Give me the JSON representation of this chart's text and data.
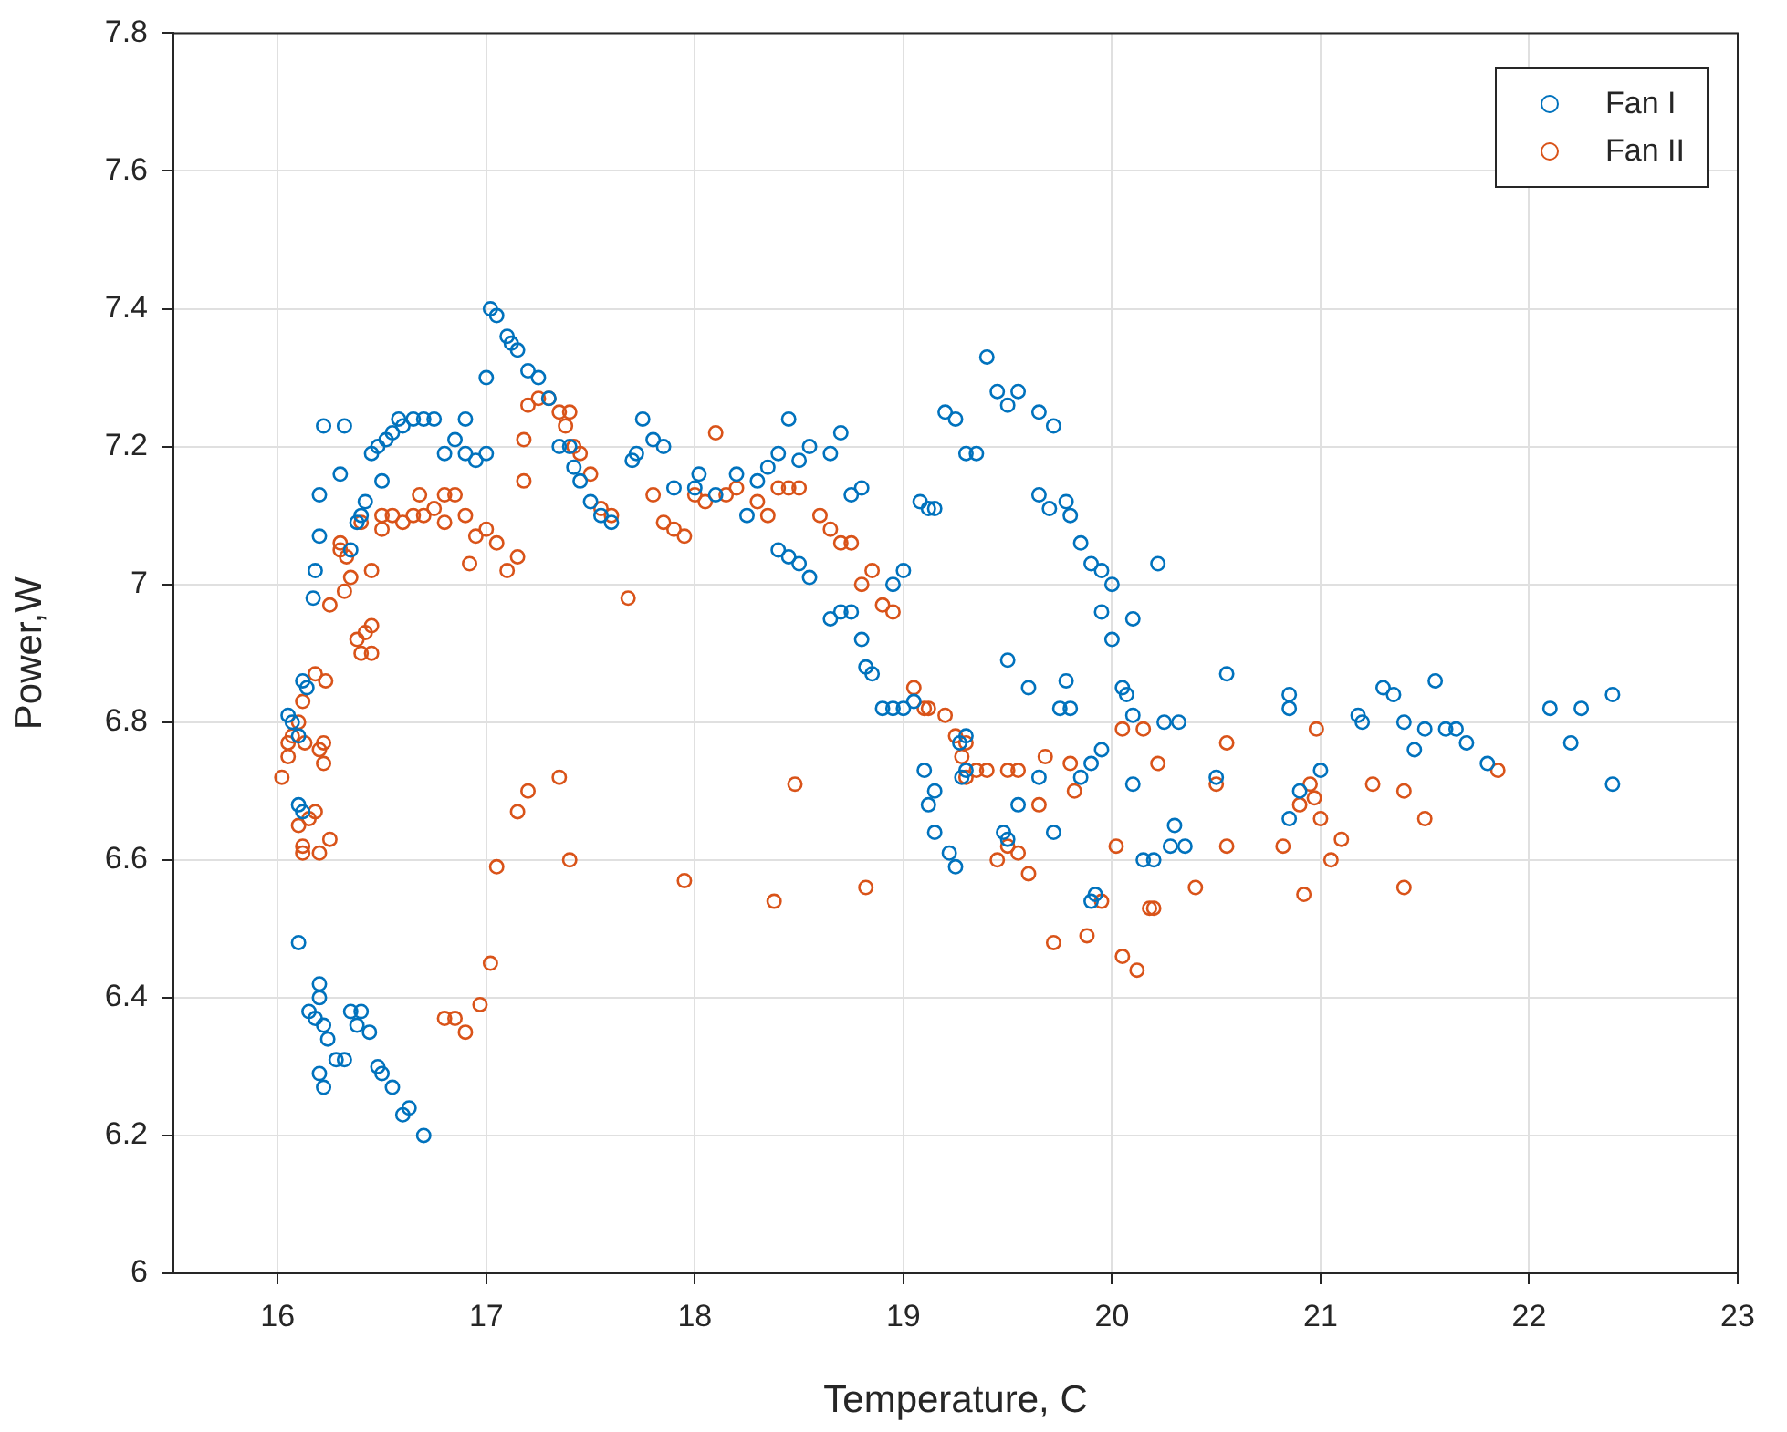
{
  "chart_data": {
    "type": "scatter",
    "xlabel": "Temperature, C",
    "ylabel": "Power,W",
    "xlim": [
      15.5,
      23
    ],
    "ylim": [
      6,
      7.8
    ],
    "xticks": [
      16,
      17,
      18,
      19,
      20,
      21,
      22,
      23
    ],
    "yticks": [
      6,
      6.2,
      6.4,
      6.6,
      6.8,
      7,
      7.2,
      7.4,
      7.6,
      7.8
    ],
    "grid": true,
    "legend": "top right",
    "marker": "circle",
    "series": [
      {
        "name": "Fan I",
        "color": "#0072bd",
        "x": [
          16.05,
          16.07,
          16.1,
          16.12,
          16.14,
          16.1,
          16.12,
          16.1,
          16.15,
          16.2,
          16.2,
          16.18,
          16.22,
          16.2,
          16.22,
          16.24,
          16.28,
          16.32,
          16.35,
          16.38,
          16.4,
          16.44,
          16.48,
          16.5,
          16.55,
          16.6,
          16.63,
          16.7,
          16.17,
          16.2,
          16.18,
          16.2,
          16.22,
          16.32,
          16.3,
          16.35,
          16.38,
          16.4,
          16.42,
          16.45,
          16.48,
          16.5,
          16.52,
          16.55,
          16.58,
          16.6,
          16.65,
          16.7,
          16.75,
          16.8,
          16.85,
          16.9,
          16.9,
          16.95,
          17.0,
          17.0,
          17.02,
          17.05,
          17.1,
          17.12,
          17.15,
          17.2,
          17.25,
          17.3,
          17.35,
          17.4,
          17.42,
          17.45,
          17.5,
          17.55,
          17.6,
          17.7,
          17.72,
          17.75,
          17.8,
          17.85,
          17.9,
          18.0,
          18.02,
          18.1,
          18.2,
          18.25,
          18.3,
          18.35,
          18.4,
          18.45,
          18.5,
          18.55,
          18.4,
          18.45,
          18.5,
          18.55,
          18.65,
          18.7,
          18.75,
          18.8,
          18.65,
          18.7,
          18.75,
          18.8,
          18.82,
          18.85,
          18.9,
          18.95,
          19.0,
          19.05,
          18.95,
          19.0,
          19.08,
          19.12,
          19.15,
          19.2,
          19.25,
          19.3,
          19.35,
          19.4,
          19.45,
          19.5,
          19.55,
          19.65,
          19.72,
          19.65,
          19.7,
          19.78,
          19.8,
          19.85,
          19.9,
          19.95,
          20.0,
          20.1,
          20.22,
          19.95,
          20.0,
          20.05,
          20.07,
          20.1,
          20.1,
          20.15,
          20.2,
          20.25,
          20.32,
          20.3,
          20.28,
          20.35,
          20.55,
          20.5,
          19.1,
          19.15,
          19.12,
          19.15,
          19.22,
          19.25,
          19.28,
          19.3,
          19.27,
          19.3,
          19.5,
          19.48,
          19.5,
          19.55,
          19.6,
          19.78,
          19.75,
          19.8,
          19.85,
          19.9,
          19.95,
          19.9,
          19.92,
          19.65,
          19.72,
          20.85,
          20.85,
          20.85,
          20.9,
          21.0,
          21.18,
          21.2,
          21.3,
          21.35,
          21.4,
          21.45,
          21.5,
          21.55,
          21.6,
          21.65,
          21.7,
          21.8,
          22.1,
          22.25,
          22.4,
          22.2,
          22.4
        ],
        "values": [
          6.81,
          6.8,
          6.78,
          6.86,
          6.85,
          6.68,
          6.67,
          6.48,
          6.38,
          6.42,
          6.4,
          6.37,
          6.36,
          6.29,
          6.27,
          6.34,
          6.31,
          6.31,
          6.38,
          6.36,
          6.38,
          6.35,
          6.3,
          6.29,
          6.27,
          6.23,
          6.24,
          6.2,
          6.98,
          7.07,
          7.02,
          7.13,
          7.23,
          7.23,
          7.16,
          7.05,
          7.09,
          7.1,
          7.12,
          7.19,
          7.2,
          7.15,
          7.21,
          7.22,
          7.24,
          7.23,
          7.24,
          7.24,
          7.24,
          7.19,
          7.21,
          7.24,
          7.19,
          7.18,
          7.19,
          7.3,
          7.4,
          7.39,
          7.36,
          7.35,
          7.34,
          7.31,
          7.3,
          7.27,
          7.2,
          7.2,
          7.17,
          7.15,
          7.12,
          7.1,
          7.09,
          7.18,
          7.19,
          7.24,
          7.21,
          7.2,
          7.14,
          7.14,
          7.16,
          7.13,
          7.16,
          7.1,
          7.15,
          7.17,
          7.19,
          7.24,
          7.18,
          7.2,
          7.05,
          7.04,
          7.03,
          7.01,
          7.19,
          7.22,
          7.13,
          7.14,
          6.95,
          6.96,
          6.96,
          6.92,
          6.88,
          6.87,
          6.82,
          6.82,
          6.82,
          6.83,
          7.0,
          7.02,
          7.12,
          7.11,
          7.11,
          7.25,
          7.24,
          7.19,
          7.19,
          7.33,
          7.28,
          7.26,
          7.28,
          7.25,
          7.23,
          7.13,
          7.11,
          7.12,
          7.1,
          7.06,
          7.03,
          7.02,
          7.0,
          6.95,
          7.03,
          6.96,
          6.92,
          6.85,
          6.84,
          6.81,
          6.71,
          6.6,
          6.6,
          6.8,
          6.8,
          6.65,
          6.62,
          6.62,
          6.87,
          6.72,
          6.73,
          6.7,
          6.68,
          6.64,
          6.61,
          6.59,
          6.72,
          6.73,
          6.77,
          6.78,
          6.89,
          6.64,
          6.63,
          6.68,
          6.85,
          6.86,
          6.82,
          6.82,
          6.72,
          6.74,
          6.76,
          6.54,
          6.55,
          6.72,
          6.64,
          6.84,
          6.82,
          6.66,
          6.7,
          6.73,
          6.81,
          6.8,
          6.85,
          6.84,
          6.8,
          6.76,
          6.79,
          6.86,
          6.79,
          6.79,
          6.77,
          6.74,
          6.82,
          6.82,
          6.84,
          6.77,
          6.71
        ]
      },
      {
        "name": "Fan II",
        "color": "#d95319",
        "x": [
          16.02,
          16.05,
          16.07,
          16.05,
          16.1,
          16.12,
          16.13,
          16.1,
          16.12,
          16.12,
          16.15,
          16.18,
          16.2,
          16.22,
          16.25,
          16.2,
          16.22,
          16.18,
          16.23,
          16.25,
          16.32,
          16.3,
          16.3,
          16.33,
          16.35,
          16.4,
          16.38,
          16.42,
          16.45,
          16.4,
          16.45,
          16.45,
          16.5,
          16.5,
          16.55,
          16.6,
          16.65,
          16.68,
          16.7,
          16.75,
          16.8,
          16.8,
          16.85,
          16.9,
          16.92,
          16.95,
          17.0,
          17.05,
          17.1,
          17.15,
          17.18,
          17.18,
          17.2,
          17.25,
          17.3,
          17.35,
          17.38,
          17.4,
          17.42,
          17.45,
          17.5,
          17.55,
          17.6,
          17.68,
          17.8,
          17.85,
          17.9,
          17.95,
          18.0,
          18.05,
          18.1,
          18.15,
          18.2,
          18.3,
          18.35,
          18.4,
          18.45,
          18.5,
          18.6,
          18.65,
          18.7,
          18.75,
          18.8,
          18.85,
          18.9,
          18.95,
          19.05,
          19.1,
          19.12,
          19.2,
          19.25,
          19.3,
          19.28,
          19.3,
          19.35,
          19.4,
          19.5,
          19.55,
          19.45,
          19.5,
          19.55,
          19.65,
          19.68,
          19.8,
          19.82,
          19.6,
          19.72,
          19.88,
          19.95,
          20.02,
          20.05,
          20.15,
          20.05,
          20.12,
          20.18,
          20.2,
          20.22,
          20.4,
          20.5,
          20.55,
          20.55,
          20.82,
          20.9,
          20.95,
          20.92,
          20.98,
          20.97,
          21.0,
          21.05,
          21.1,
          21.25,
          21.4,
          21.5,
          21.4,
          21.85,
          16.8,
          16.85,
          16.9,
          16.97,
          17.02,
          17.05,
          17.15,
          17.2,
          17.35,
          17.4,
          17.95,
          18.38,
          18.48,
          18.82
        ],
        "values": [
          6.72,
          6.77,
          6.78,
          6.75,
          6.8,
          6.83,
          6.77,
          6.65,
          6.62,
          6.61,
          6.66,
          6.67,
          6.61,
          6.74,
          6.63,
          6.76,
          6.77,
          6.87,
          6.86,
          6.97,
          6.99,
          7.05,
          7.06,
          7.04,
          7.01,
          7.09,
          6.92,
          6.93,
          6.94,
          6.9,
          6.9,
          7.02,
          7.08,
          7.1,
          7.1,
          7.09,
          7.1,
          7.13,
          7.1,
          7.11,
          7.09,
          7.13,
          7.13,
          7.1,
          7.03,
          7.07,
          7.08,
          7.06,
          7.02,
          7.04,
          7.15,
          7.21,
          7.26,
          7.27,
          7.27,
          7.25,
          7.23,
          7.25,
          7.2,
          7.19,
          7.16,
          7.11,
          7.1,
          6.98,
          7.13,
          7.09,
          7.08,
          7.07,
          7.13,
          7.12,
          7.22,
          7.13,
          7.14,
          7.12,
          7.1,
          7.14,
          7.14,
          7.14,
          7.1,
          7.08,
          7.06,
          7.06,
          7.0,
          7.02,
          6.97,
          6.96,
          6.85,
          6.82,
          6.82,
          6.81,
          6.78,
          6.77,
          6.75,
          6.72,
          6.73,
          6.73,
          6.73,
          6.73,
          6.6,
          6.62,
          6.61,
          6.68,
          6.75,
          6.74,
          6.7,
          6.58,
          6.48,
          6.49,
          6.54,
          6.62,
          6.79,
          6.79,
          6.46,
          6.44,
          6.53,
          6.53,
          6.74,
          6.56,
          6.71,
          6.62,
          6.77,
          6.62,
          6.68,
          6.71,
          6.55,
          6.79,
          6.69,
          6.66,
          6.6,
          6.63,
          6.71,
          6.7,
          6.66,
          6.56,
          6.73,
          6.37,
          6.37,
          6.35,
          6.39,
          6.45,
          6.59,
          6.67,
          6.7,
          6.72,
          6.6,
          6.57,
          6.54,
          6.71,
          6.56
        ]
      }
    ]
  }
}
